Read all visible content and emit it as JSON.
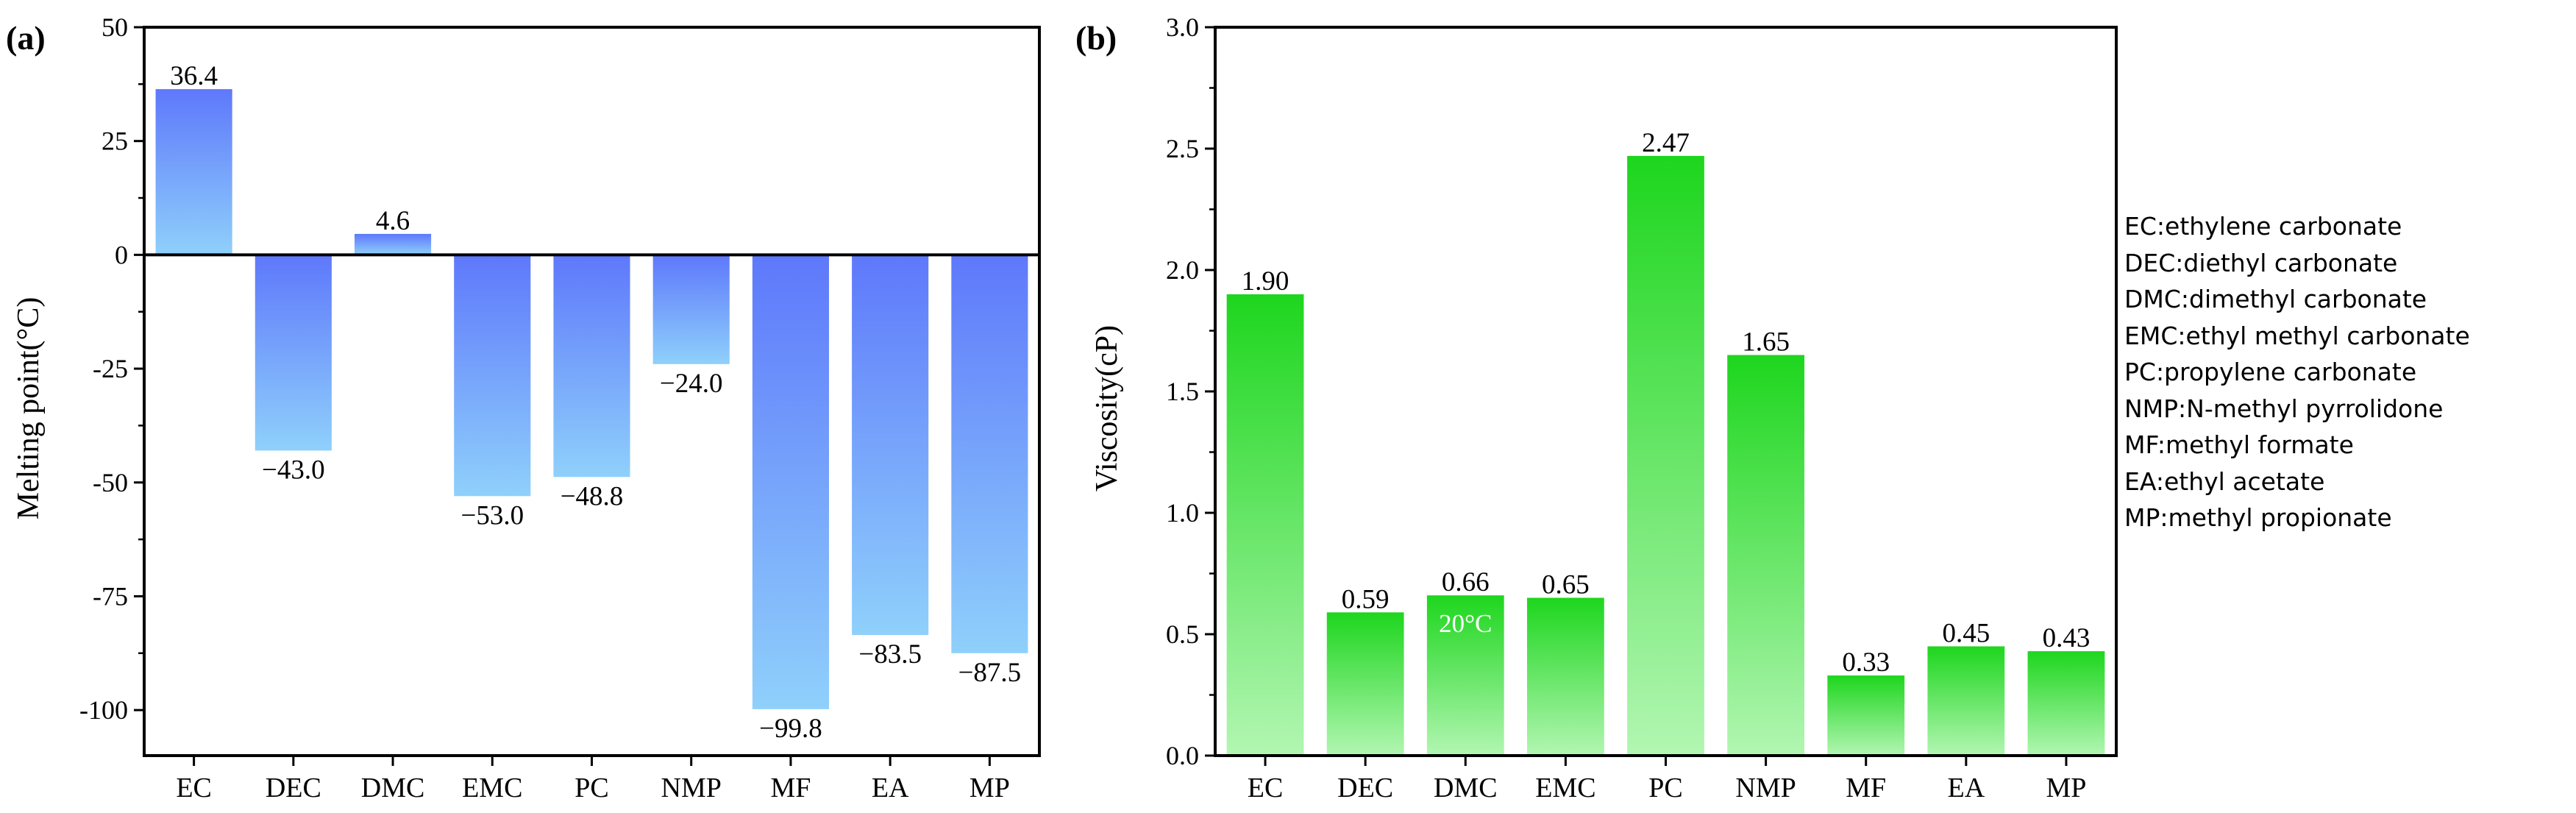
{
  "colors": {
    "melting_top": "#5e78fb",
    "melting_bottom": "#8fd0fb",
    "viscosity_top": "#1ed61e",
    "viscosity_bottom": "#b2f6b2",
    "axis": "#000000"
  },
  "chart_data": [
    {
      "type": "bar",
      "panel": "(a)",
      "title": "",
      "xlabel": "",
      "ylabel": "Melting point(°C)",
      "ylim": [
        -110,
        50
      ],
      "yticks": [
        50,
        25,
        0,
        -25,
        -50,
        -75,
        -100
      ],
      "ytick_labels": [
        "50",
        "25",
        "0",
        "-25",
        "-50",
        "-75",
        "-100"
      ],
      "categories": [
        "EC",
        "DEC",
        "DMC",
        "EMC",
        "PC",
        "NMP",
        "MF",
        "EA",
        "MP"
      ],
      "values": [
        36.4,
        -43.0,
        4.6,
        -53.0,
        -48.8,
        -24.0,
        -99.8,
        -83.5,
        -87.5
      ],
      "value_labels": [
        "36.4",
        "−43.0",
        "4.6",
        "−53.0",
        "−48.8",
        "−24.0",
        "−99.8",
        "−83.5",
        "−87.5"
      ],
      "zero_line": true
    },
    {
      "type": "bar",
      "panel": "(b)",
      "title": "",
      "xlabel": "",
      "ylabel": "Viscosity(cP)",
      "ylim": [
        0,
        3.0
      ],
      "yticks": [
        0,
        0.5,
        1.0,
        1.5,
        2.0,
        2.5,
        3.0
      ],
      "ytick_labels": [
        "0.0",
        "0.5",
        "1.0",
        "1.5",
        "2.0",
        "2.5",
        "3.0"
      ],
      "categories": [
        "EC",
        "DEC",
        "DMC",
        "EMC",
        "PC",
        "NMP",
        "MF",
        "EA",
        "MP"
      ],
      "values": [
        1.9,
        0.59,
        0.66,
        0.65,
        2.47,
        1.65,
        0.33,
        0.45,
        0.43
      ],
      "value_labels": [
        "1.90",
        "0.59",
        "0.66",
        "0.65",
        "2.47",
        "1.65",
        "0.33",
        "0.45",
        "0.43"
      ],
      "annotation": {
        "text": "20°C",
        "category": "DMC"
      }
    }
  ],
  "legend": {
    "items": [
      "EC:ethylene carbonate",
      "DEC:diethyl carbonate",
      "DMC:dimethyl carbonate",
      "EMC:ethyl methyl carbonate",
      "PC:propylene carbonate",
      "NMP:N-methyl pyrrolidone",
      "MF:methyl formate",
      "EA:ethyl acetate",
      "MP:methyl propionate"
    ]
  }
}
